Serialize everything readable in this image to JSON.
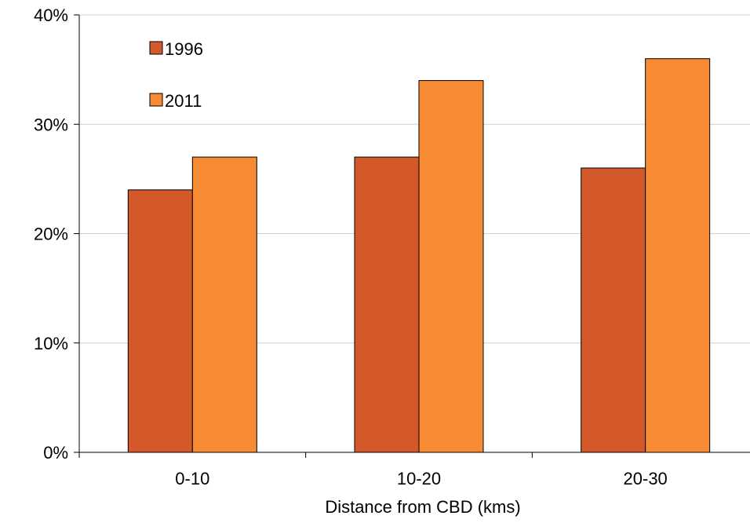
{
  "chart_data": {
    "type": "bar",
    "title": "",
    "xlabel": "Distance from CBD (kms)",
    "ylabel": "",
    "categories": [
      "0-10",
      "10-20",
      "20-30"
    ],
    "series": [
      {
        "name": "1996",
        "values": [
          24,
          27,
          26
        ],
        "color": "#d4592a"
      },
      {
        "name": "2011",
        "values": [
          27,
          34,
          36
        ],
        "color": "#f68b33"
      }
    ],
    "ylim": [
      0,
      40
    ],
    "yticks": [
      0,
      10,
      20,
      30,
      40
    ],
    "ytick_labels": [
      "0%",
      "10%",
      "20%",
      "30%",
      "40%"
    ],
    "grid": "horizontal",
    "legend_position": "top-left"
  }
}
